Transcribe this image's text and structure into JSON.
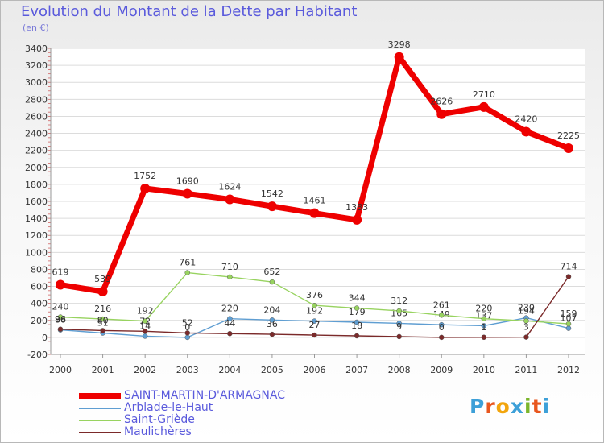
{
  "header": {
    "title": "Evolution du Montant de la Dette par Habitant",
    "subtitle": "(en €)"
  },
  "logo": {
    "text": "Proxiti",
    "colors": [
      "#3da0d8",
      "#e8561e",
      "#f2a50c",
      "#3da0d8",
      "#7bb52b",
      "#e8561e",
      "#3da0d8"
    ]
  },
  "chart_data": {
    "type": "line",
    "title": "Evolution du Montant de la Dette par Habitant",
    "ylabel": "(en €)",
    "xlabel": "",
    "ylim": [
      -200,
      3400
    ],
    "yticks": [
      -200,
      0,
      200,
      400,
      600,
      800,
      1000,
      1200,
      1400,
      1600,
      1800,
      2000,
      2200,
      2400,
      2600,
      2800,
      3000,
      3200,
      3400
    ],
    "categories": [
      "2000",
      "2001",
      "2002",
      "2003",
      "2004",
      "2005",
      "2006",
      "2007",
      "2008",
      "2009",
      "2010",
      "2011",
      "2012"
    ],
    "legend_position": "bottom-left",
    "series": [
      {
        "name": "SAINT-MARTIN-D'ARMAGNAC",
        "color": "#ee0000",
        "values": [
          619,
          539,
          1752,
          1690,
          1624,
          1542,
          1461,
          1383,
          3298,
          2626,
          2710,
          2420,
          2225
        ],
        "labels": [
          "619",
          "539",
          "1752",
          "1690",
          "1624",
          "1542",
          "1461",
          "1383",
          "3298",
          "2626",
          "2710",
          "2420",
          "2225"
        ]
      },
      {
        "name": "Arblade-le-Haut",
        "color": "#5f9ed2",
        "values": [
          88,
          51,
          14,
          0,
          220,
          204,
          192,
          179,
          165,
          149,
          137,
          230,
          107
        ],
        "labels": [
          "88",
          "51",
          "14",
          "0",
          "220",
          "204",
          "192",
          "179",
          "165",
          "149",
          "137",
          "230",
          "107"
        ]
      },
      {
        "name": "Saint-Griède",
        "color": "#98d360",
        "values": [
          240,
          216,
          192,
          761,
          710,
          652,
          376,
          344,
          312,
          261,
          220,
          194,
          159
        ],
        "labels": [
          "240",
          "216",
          "192",
          "761",
          "710",
          "652",
          "376",
          "344",
          "312",
          "261",
          "220",
          "194",
          "159"
        ]
      },
      {
        "name": "Maulichères",
        "color": "#7b2a2a",
        "values": [
          96,
          80,
          72,
          52,
          44,
          36,
          27,
          18,
          9,
          0,
          1,
          3,
          714
        ],
        "labels": [
          "96",
          "80",
          "72",
          "52",
          "44",
          "36",
          "27",
          "18",
          "9",
          "0",
          "1",
          "3",
          "714"
        ]
      }
    ]
  }
}
